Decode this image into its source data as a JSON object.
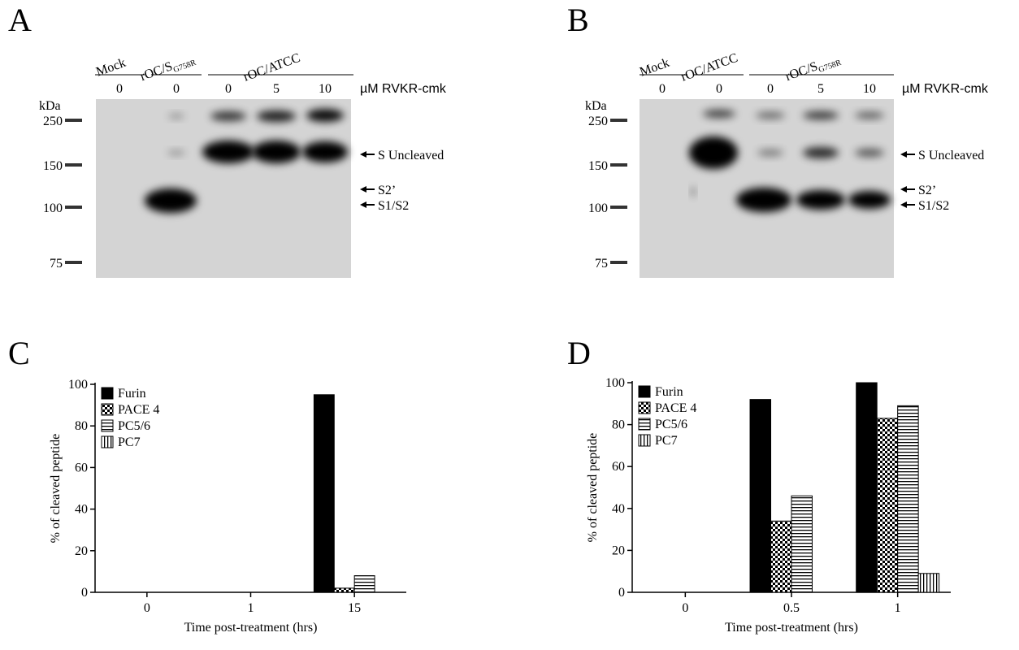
{
  "panel_labels": [
    "A",
    "B",
    "C",
    "D"
  ],
  "blots": [
    {
      "groups": [
        {
          "label": "Mock"
        },
        {
          "label": "rOC/S",
          "sub": "G758R"
        },
        {
          "label": "rOC/ATCC"
        }
      ],
      "doses": [
        "0",
        "0",
        "0",
        "5",
        "10"
      ],
      "dose_unit": "µM RVKR-cmk",
      "kda": "kDa",
      "markers": [
        250,
        150,
        100,
        75
      ],
      "bands": [
        "S Uncleaved",
        "S2’",
        "S1/S2"
      ]
    },
    {
      "groups": [
        {
          "label": "Mock"
        },
        {
          "label": "rOC/ATCC"
        },
        {
          "label": "rOC/S",
          "sub": "G758R"
        }
      ],
      "doses": [
        "0",
        "0",
        "0",
        "5",
        "10"
      ],
      "dose_unit": "µM RVKR-cmk",
      "kda": "kDa",
      "markers": [
        250,
        150,
        100,
        75
      ],
      "bands": [
        "S Uncleaved",
        "S2’",
        "S1/S2"
      ]
    }
  ],
  "chart_data": [
    {
      "type": "bar",
      "xlabel": "Time post-treatment (hrs)",
      "ylabel": "% of cleaved peptide",
      "categories": [
        "0",
        "1",
        "15"
      ],
      "ylim": [
        0,
        100
      ],
      "yticks": [
        0,
        20,
        40,
        60,
        80,
        100
      ],
      "legend": "top-left",
      "series": [
        {
          "name": "Furin",
          "color": "#000000",
          "pattern": "solid",
          "values": [
            0,
            0,
            95
          ]
        },
        {
          "name": "PACE 4",
          "color": "#000000",
          "pattern": "checker",
          "values": [
            0,
            0,
            2
          ]
        },
        {
          "name": "PC5/6",
          "color": "#000000",
          "pattern": "hstripe",
          "values": [
            0,
            0,
            8
          ]
        },
        {
          "name": "PC7",
          "color": "#000000",
          "pattern": "vstripe",
          "values": [
            0,
            0,
            0
          ]
        }
      ]
    },
    {
      "type": "bar",
      "xlabel": "Time post-treatment (hrs)",
      "ylabel": "% of cleaved peptide",
      "categories": [
        "0",
        "0.5",
        "1"
      ],
      "ylim": [
        0,
        100
      ],
      "yticks": [
        0,
        20,
        40,
        60,
        80,
        100
      ],
      "legend": "top-left",
      "series": [
        {
          "name": "Furin",
          "color": "#000000",
          "pattern": "solid",
          "values": [
            0,
            92,
            100
          ]
        },
        {
          "name": "PACE 4",
          "color": "#000000",
          "pattern": "checker",
          "values": [
            0,
            34,
            83
          ]
        },
        {
          "name": "PC5/6",
          "color": "#000000",
          "pattern": "hstripe",
          "values": [
            0,
            46,
            89
          ]
        },
        {
          "name": "PC7",
          "color": "#000000",
          "pattern": "vstripe",
          "values": [
            0,
            0,
            9
          ]
        }
      ]
    }
  ]
}
